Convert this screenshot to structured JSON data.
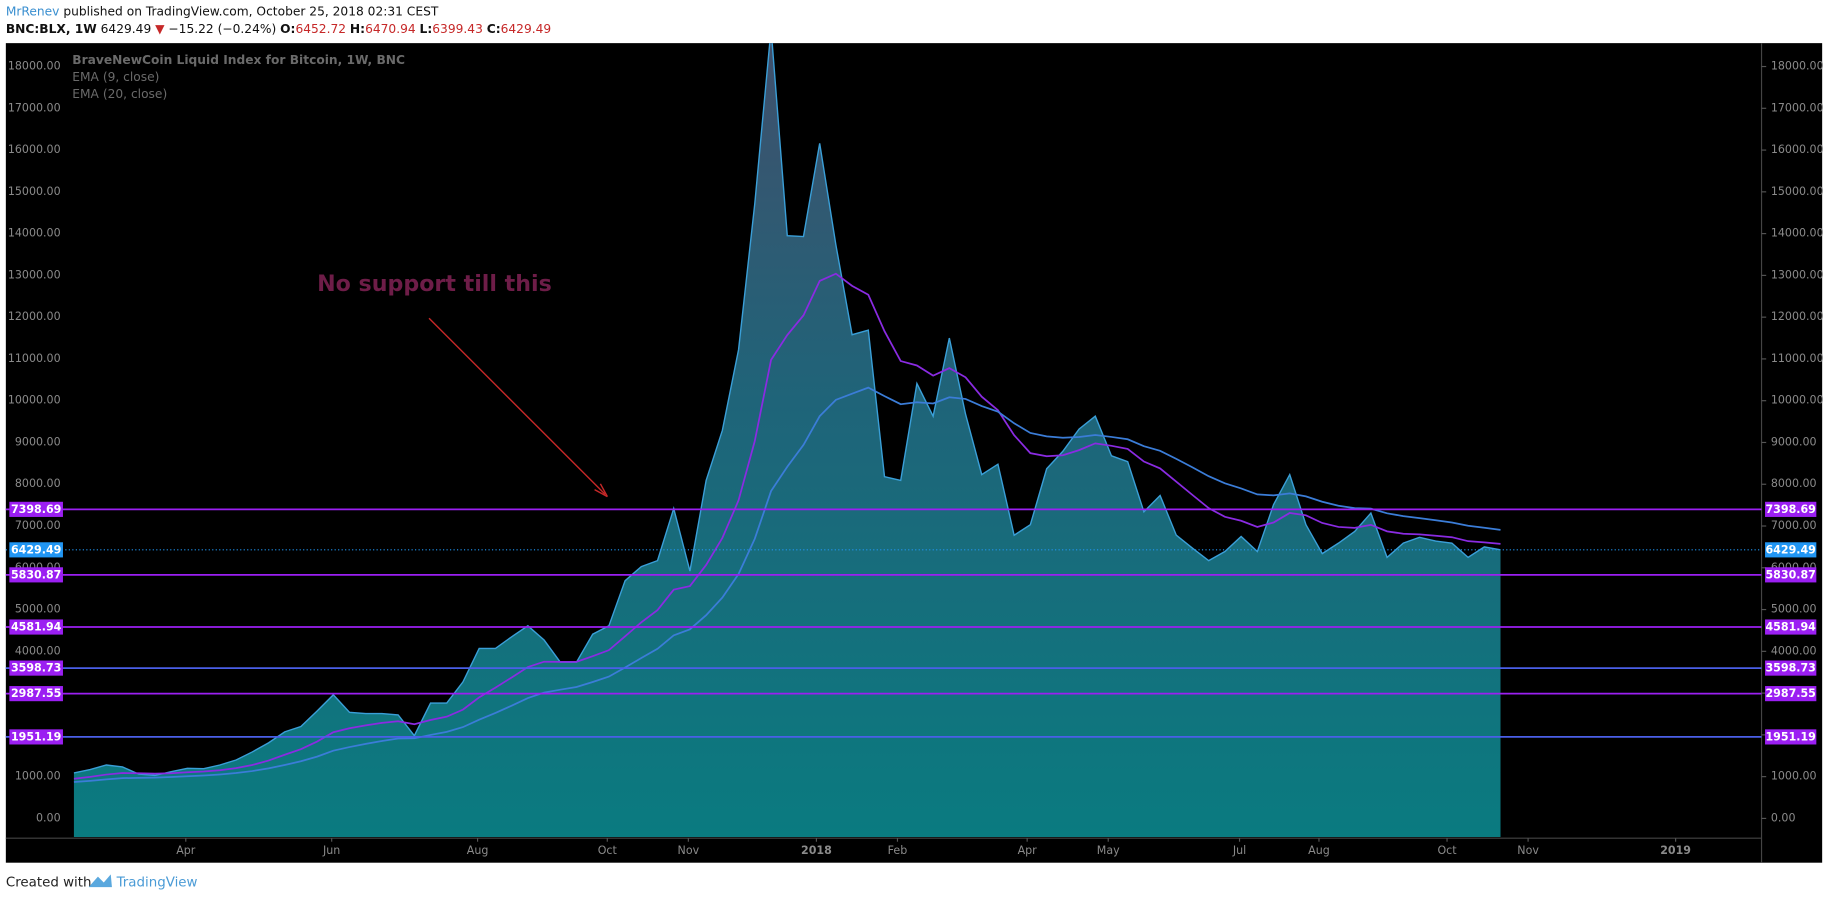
{
  "header": {
    "author": "MrRenev",
    "published": "published on TradingView.com, October 25, 2018 02:31 CEST"
  },
  "symbol_bar": {
    "symbol": "BNC:BLX, 1W",
    "price": 6429.49,
    "direction": "▼",
    "change": "−15.22 (−0.24%)",
    "ohlc": [
      {
        "label": "O:",
        "value": 6452.72
      },
      {
        "label": "H:",
        "value": 6470.94
      },
      {
        "label": "L:",
        "value": 6399.43
      },
      {
        "label": "C:",
        "value": 6429.49
      }
    ]
  },
  "footer": {
    "created": "Created with",
    "brand": "TradingView"
  },
  "chart_data": {
    "type": "area",
    "legend": "top-left",
    "x": [
      0,
      1,
      2,
      3,
      4,
      5,
      6,
      7,
      8,
      9,
      10,
      11,
      12,
      13,
      14,
      15,
      16,
      17,
      18,
      19,
      20,
      21,
      22,
      23,
      24,
      25,
      26,
      27,
      28,
      29,
      30,
      31,
      32,
      33,
      34,
      35,
      36,
      37,
      38,
      39,
      40,
      41,
      42,
      43,
      44,
      45,
      46,
      47,
      48,
      49,
      50,
      51,
      52,
      53,
      54,
      55,
      56,
      57,
      58,
      59,
      60,
      61,
      62,
      63,
      64,
      65,
      66,
      67,
      68,
      69,
      70,
      71,
      72,
      73,
      74,
      75,
      76,
      77,
      78,
      79,
      80,
      81,
      82,
      83,
      84,
      85,
      86,
      87,
      88
    ],
    "xlim": [
      -4.2,
      104.1
    ],
    "xticks": [
      {
        "value": 6.9,
        "label": "Apr"
      },
      {
        "value": 15.9,
        "label": "Jun"
      },
      {
        "value": 24.9,
        "label": "Aug"
      },
      {
        "value": 32.9,
        "label": "Oct"
      },
      {
        "value": 37.9,
        "label": "Nov"
      },
      {
        "value": 45.8,
        "label": "2018"
      },
      {
        "value": 50.8,
        "label": "Feb"
      },
      {
        "value": 58.8,
        "label": "Apr"
      },
      {
        "value": 63.8,
        "label": "May"
      },
      {
        "value": 71.9,
        "label": "Jul"
      },
      {
        "value": 76.8,
        "label": "Aug"
      },
      {
        "value": 84.7,
        "label": "Oct"
      },
      {
        "value": 89.7,
        "label": "Nov"
      },
      {
        "value": 98.8,
        "label": "2019"
      }
    ],
    "ylim": [
      -446,
      18560
    ],
    "yticks": [
      {
        "value": 0,
        "label": "0.00"
      },
      {
        "value": 1000,
        "label": "1000.00"
      },
      {
        "value": 2000,
        "label": "2000.00"
      },
      {
        "value": 3000,
        "label": "3000.00"
      },
      {
        "value": 4000,
        "label": "4000.00"
      },
      {
        "value": 5000,
        "label": "5000.00"
      },
      {
        "value": 6000,
        "label": "6000.00"
      },
      {
        "value": 7000,
        "label": "7000.00"
      },
      {
        "value": 8000,
        "label": "8000.00"
      },
      {
        "value": 9000,
        "label": "9000.00"
      },
      {
        "value": 10000,
        "label": "10000.00"
      },
      {
        "value": 11000,
        "label": "11000.00"
      },
      {
        "value": 12000,
        "label": "12000.00"
      },
      {
        "value": 13000,
        "label": "13000.00"
      },
      {
        "value": 14000,
        "label": "14000.00"
      },
      {
        "value": 15000,
        "label": "15000.00"
      },
      {
        "value": 16000,
        "label": "16000.00"
      },
      {
        "value": 17000,
        "label": "17000.00"
      },
      {
        "value": 18000,
        "label": "18000.00"
      }
    ],
    "series": [
      {
        "name": "BraveNewCoin Liquid Index for Bitcoin, 1W, BNC",
        "type": "area",
        "color": "#3a9fd8",
        "values": [
          1090,
          1170,
          1280,
          1230,
          1060,
          1030,
          1120,
          1200,
          1190,
          1280,
          1400,
          1590,
          1810,
          2070,
          2200,
          2570,
          2960,
          2540,
          2510,
          2510,
          2480,
          1980,
          2760,
          2760,
          3270,
          4070,
          4070,
          4350,
          4610,
          4270,
          3740,
          3740,
          4410,
          4610,
          5690,
          6030,
          6170,
          7420,
          5920,
          8090,
          9290,
          11220,
          14710,
          18900,
          13950,
          13930,
          16160,
          13730,
          11580,
          11690,
          8180,
          8090,
          10410,
          9630,
          11500,
          9680,
          8230,
          8480,
          6780,
          7030,
          8370,
          8790,
          9320,
          9630,
          8680,
          8540,
          7340,
          7730,
          6780,
          6470,
          6170,
          6390,
          6750,
          6390,
          7510,
          8230,
          7030,
          6340,
          6590,
          6870,
          7310,
          6250,
          6590,
          6730,
          6640,
          6590,
          6250,
          6500,
          6429.49
        ]
      },
      {
        "name": "EMA (9, close)",
        "type": "line",
        "color": "#8a2be2",
        "values": [
          950,
          994,
          1051,
          1087,
          1082,
          1072,
          1082,
          1106,
          1123,
          1154,
          1203,
          1280,
          1386,
          1523,
          1658,
          1840,
          2064,
          2159,
          2229,
          2285,
          2324,
          2255,
          2356,
          2437,
          2604,
          2897,
          3132,
          3376,
          3623,
          3752,
          3750,
          3750,
          3882,
          4028,
          4360,
          4694,
          4989,
          5475,
          5564,
          6069,
          6713,
          7614,
          9033,
          10978,
          11572,
          12044,
          12867,
          13040,
          12748,
          12536,
          11665,
          10950,
          10842,
          10600,
          10780,
          10560,
          10094,
          9771,
          9173,
          8744,
          8669,
          8693,
          8818,
          8980,
          8920,
          8844,
          8543,
          8380,
          8060,
          7742,
          7428,
          7220,
          7126,
          6979,
          7085,
          7314,
          7257,
          7074,
          6977,
          6956,
          7027,
          6872,
          6816,
          6799,
          6767,
          6732,
          6636,
          6609,
          6573
        ]
      },
      {
        "name": "EMA (20, close)",
        "type": "line",
        "color": "#3b7dd8",
        "values": [
          870,
          899,
          935,
          963,
          972,
          978,
          991,
          1011,
          1028,
          1052,
          1085,
          1133,
          1197,
          1280,
          1367,
          1481,
          1622,
          1709,
          1785,
          1854,
          1913,
          1919,
          1999,
          2071,
          2185,
          2364,
          2526,
          2699,
          2881,
          3013,
          3082,
          3145,
          3265,
          3393,
          3611,
          3841,
          4062,
          4381,
          4527,
          4866,
          5286,
          5850,
          6692,
          7838,
          8419,
          8943,
          9629,
          10019,
          10167,
          10312,
          10109,
          9917,
          9964,
          9932,
          10081,
          10043,
          9871,
          9739,
          9458,
          9227,
          9146,
          9112,
          9132,
          9179,
          9132,
          9076,
          8911,
          8799,
          8607,
          8404,
          8192,
          8021,
          7900,
          7757,
          7734,
          7781,
          7710,
          7580,
          7486,
          7427,
          7416,
          7305,
          7237,
          7189,
          7137,
          7085,
          7006,
          6958,
          6908
        ]
      }
    ],
    "levels": [
      {
        "value": 7398.69,
        "color": "#9b1ff2"
      },
      {
        "value": 5830.87,
        "color": "#9b1ff2"
      },
      {
        "value": 4581.94,
        "color": "#9b1ff2"
      },
      {
        "value": 3598.73,
        "color": "#4a5fe8"
      },
      {
        "value": 2987.55,
        "color": "#9b1ff2"
      },
      {
        "value": 1951.19,
        "color": "#4a5fe8"
      }
    ],
    "level_label_color": "#9b1ff2",
    "last_price": {
      "value": 6429.49,
      "color": "#2196f3"
    },
    "annotation": {
      "text": "No support till this",
      "color": "#6e1d48"
    }
  }
}
